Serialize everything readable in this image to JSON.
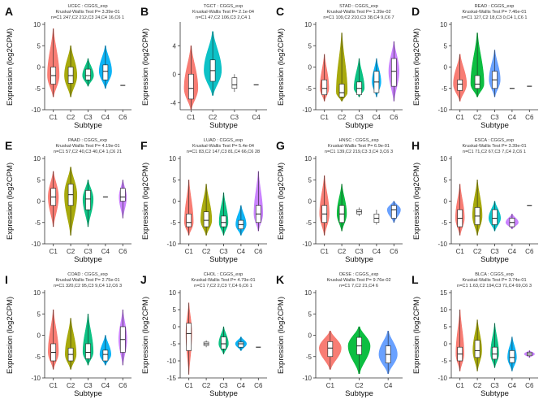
{
  "figure": {
    "ylabel": "Expression (log2CPM)",
    "xlabel": "Subtype"
  },
  "chart_data": [
    {
      "label": "A",
      "type": "violin",
      "title": "UCEC : CGGS_exp",
      "subtitle": "Kruskal-Wallis Test P= 3.39e-01",
      "counts": "n=C1 247,C2 212,C3 24,C4 16,C6 1",
      "ylim": [
        -10,
        10
      ],
      "yticks": [
        -10,
        -5,
        0,
        5,
        10
      ],
      "categories": [
        "C1",
        "C2",
        "C3",
        "C4",
        "C6"
      ],
      "colors": [
        "#F8766D",
        "#A3A500",
        "#00BF7D",
        "#00B0F6",
        "#C77CFF"
      ],
      "medians": [
        -2,
        -2,
        -2,
        -1,
        -4.3
      ],
      "q1": [
        -4,
        -3.8,
        -3,
        -3,
        -4.3
      ],
      "q3": [
        0,
        0,
        -0.5,
        0.5,
        -4.3
      ],
      "mins": [
        -7,
        -7,
        -4.5,
        -5,
        -4.3
      ],
      "maxs": [
        9,
        5,
        2,
        5,
        -4.3
      ],
      "widths": [
        0.8,
        0.85,
        0.75,
        0.85,
        0
      ]
    },
    {
      "label": "B",
      "type": "violin",
      "title": "TGCT : CGGS_exp",
      "subtitle": "Kruskal-Wallis Test P= 2.1e-04",
      "counts": "n=C1 47,C2 106,C3 2,C4 1",
      "ylim": [
        -5,
        7
      ],
      "yticks": [
        -4,
        0,
        4
      ],
      "categories": [
        "C1",
        "C2",
        "C3",
        "C4"
      ],
      "colors": [
        "#F8766D",
        "#00BFC4",
        "#7CAE00",
        "#C77CFF"
      ],
      "medians": [
        -2,
        0.5,
        -1.5,
        -1.5
      ],
      "q1": [
        -3.5,
        -1,
        -2,
        -1.5
      ],
      "q3": [
        0,
        2,
        -0.5,
        -1.5
      ],
      "mins": [
        -5,
        -3,
        -2.5,
        -1.5
      ],
      "maxs": [
        4,
        6,
        0,
        -1.5
      ],
      "widths": [
        0.75,
        0.95,
        0,
        0
      ]
    },
    {
      "label": "C",
      "type": "violin",
      "title": "STAD : CGGS_exp",
      "subtitle": "Kruskal-Wallis Test P= 1.39e-02",
      "counts": "n=C1 109,C2 210,C3 38,C4 9,C6 7",
      "ylim": [
        -10,
        10
      ],
      "yticks": [
        -10,
        -5,
        0,
        5,
        10
      ],
      "categories": [
        "C1",
        "C2",
        "C3",
        "C4",
        "C6"
      ],
      "colors": [
        "#F8766D",
        "#A3A500",
        "#00BF7D",
        "#00B0F6",
        "#C77CFF"
      ],
      "medians": [
        -5,
        -6,
        -5,
        -3.5,
        -1
      ],
      "q1": [
        -6.5,
        -7,
        -6.5,
        -6,
        -4.5
      ],
      "q3": [
        -3,
        -4,
        -3.5,
        -1,
        2
      ],
      "mins": [
        -8,
        -8,
        -7,
        -7,
        -8
      ],
      "maxs": [
        3,
        8,
        2,
        2,
        6
      ],
      "widths": [
        0.6,
        0.75,
        0.7,
        0.6,
        0.7
      ]
    },
    {
      "label": "D",
      "type": "violin",
      "title": "READ : CGGS_exp",
      "subtitle": "Kruskal-Wallis Test P= 7.46e-01",
      "counts": "n=C1 127,C2 18,C3 0,C4 1,C6 1",
      "ylim": [
        -10,
        10
      ],
      "yticks": [
        -10,
        -5,
        0,
        5,
        10
      ],
      "categories": [
        "C1",
        "C2",
        "C3",
        "C4",
        "C6"
      ],
      "colors": [
        "#F8766D",
        "#00BA38",
        "#619CFF",
        "#555555",
        "#555555"
      ],
      "medians": [
        -4,
        -4,
        -3,
        -5,
        -4.5
      ],
      "q1": [
        -5.5,
        -5,
        -5,
        -5,
        -4.5
      ],
      "q3": [
        -3,
        -2,
        -1,
        -5,
        -4.5
      ],
      "mins": [
        -8,
        -7,
        -7,
        -5,
        -4.5
      ],
      "maxs": [
        3,
        8,
        4,
        -5,
        -4.5
      ],
      "widths": [
        0.9,
        0.9,
        0.75,
        0,
        0
      ]
    },
    {
      "label": "E",
      "type": "violin",
      "title": "PAAD : CGGS_exp",
      "subtitle": "Kruskal-Wallis Test P= 4.19e-01",
      "counts": "n=C1 57,C2 40,C3 40,C4 1,C6 21",
      "ylim": [
        -10,
        10
      ],
      "yticks": [
        -10,
        -5,
        0,
        5,
        10
      ],
      "categories": [
        "C1",
        "C2",
        "C3",
        "C4",
        "C6"
      ],
      "colors": [
        "#F8766D",
        "#A3A500",
        "#00BF7D",
        "#555555",
        "#C77CFF"
      ],
      "medians": [
        1,
        1.5,
        0.5,
        1,
        1
      ],
      "q1": [
        -1,
        -1,
        -2,
        1,
        0
      ],
      "q3": [
        3,
        4,
        2.5,
        1,
        3
      ],
      "mins": [
        -6,
        -8,
        -6,
        1,
        -4
      ],
      "maxs": [
        7,
        8,
        5,
        1,
        5
      ],
      "widths": [
        0.7,
        0.85,
        0.7,
        0,
        0.5
      ]
    },
    {
      "label": "F",
      "type": "violin",
      "title": "LUAD : CGGS_exp",
      "subtitle": "Kruskal-Wallis Test P= 5.4e-04",
      "counts": "n=C1 83,C2 147,C3 81,C4 66,C6 28",
      "ylim": [
        -10,
        10
      ],
      "yticks": [
        -10,
        -5,
        0,
        5,
        10
      ],
      "categories": [
        "C1",
        "C2",
        "C3",
        "C4",
        "C6"
      ],
      "colors": [
        "#F8766D",
        "#A3A500",
        "#00BF7D",
        "#00B0F6",
        "#C77CFF"
      ],
      "medians": [
        -5,
        -4.5,
        -5,
        -5.5,
        -3
      ],
      "q1": [
        -6,
        -6,
        -6,
        -6.5,
        -5
      ],
      "q3": [
        -3,
        -2.5,
        -3.5,
        -4.5,
        -1
      ],
      "mins": [
        -8,
        -8,
        -8,
        -8,
        -7
      ],
      "maxs": [
        5,
        4,
        2,
        -1,
        7
      ],
      "widths": [
        0.6,
        0.75,
        0.6,
        0.7,
        0.6
      ]
    },
    {
      "label": "G",
      "type": "violin",
      "title": "HNSC : CGGS_exp",
      "subtitle": "Kruskal-Wallis Test P= 6.9e-01",
      "counts": "n=C1 139,C2 219,C3 3,C4 3,C6 3",
      "ylim": [
        -10,
        10
      ],
      "yticks": [
        -10,
        -5,
        0,
        5,
        10
      ],
      "categories": [
        "C1",
        "C2",
        "C3",
        "C4",
        "C6"
      ],
      "colors": [
        "#F8766D",
        "#00BA38",
        "#555555",
        "#555555",
        "#619CFF"
      ],
      "medians": [
        -3,
        -3,
        -2.5,
        -4,
        -2
      ],
      "q1": [
        -5,
        -5,
        -3,
        -5,
        -4
      ],
      "q3": [
        -1,
        -1,
        -2,
        -3,
        -1
      ],
      "mins": [
        -8,
        -7,
        -3.5,
        -5.5,
        -5
      ],
      "maxs": [
        6,
        4,
        -1.5,
        -2,
        0
      ],
      "widths": [
        0.65,
        0.65,
        0,
        0,
        0.9
      ]
    },
    {
      "label": "H",
      "type": "violin",
      "title": "ESCA : CGGS_exp",
      "subtitle": "Kruskal-Wallis Test P= 3.39e-01",
      "counts": "n=C1 71,C2 67,C3 7,C4 2,C6 1",
      "ylim": [
        -10,
        10
      ],
      "yticks": [
        -10,
        -5,
        0,
        5,
        10
      ],
      "categories": [
        "C1",
        "C2",
        "C3",
        "C4",
        "C6"
      ],
      "colors": [
        "#F8766D",
        "#A3A500",
        "#00BFC4",
        "#C77CFF",
        "#222222"
      ],
      "medians": [
        -4,
        -3.5,
        -4,
        -5,
        -1
      ],
      "q1": [
        -6,
        -5.5,
        -5.5,
        -6,
        -1
      ],
      "q3": [
        -2,
        -1.5,
        -2,
        -4,
        -1
      ],
      "mins": [
        -8,
        -8,
        -7,
        -6.5,
        -1
      ],
      "maxs": [
        4,
        5,
        0,
        -3,
        -1
      ],
      "widths": [
        0.6,
        0.65,
        0.8,
        0.85,
        0
      ]
    },
    {
      "label": "I",
      "type": "violin",
      "title": "COAD : CGGS_exp",
      "subtitle": "Kruskal-Wallis Test P= 2.75e-01",
      "counts": "n=C1 320,C2 95,C3 9,C4 12,C6 3",
      "ylim": [
        -10,
        10
      ],
      "yticks": [
        -10,
        -5,
        0,
        5,
        10
      ],
      "categories": [
        "C1",
        "C2",
        "C3",
        "C4",
        "C6"
      ],
      "colors": [
        "#F8766D",
        "#A3A500",
        "#00BF7D",
        "#00B0F6",
        "#C77CFF"
      ],
      "medians": [
        -4,
        -4.5,
        -4,
        -4.5,
        -1
      ],
      "q1": [
        -6,
        -6,
        -5.5,
        -6,
        -4
      ],
      "q3": [
        -2,
        -3,
        -2,
        -3.5,
        2
      ],
      "mins": [
        -8,
        -8,
        -7,
        -7,
        -7
      ],
      "maxs": [
        6,
        4,
        5,
        0,
        6
      ],
      "widths": [
        0.7,
        0.75,
        0.7,
        0.75,
        0.55
      ]
    },
    {
      "label": "J",
      "type": "violin",
      "title": "CHOL : CGGS_exp",
      "subtitle": "Kruskal-Wallis Test P= 4.79e-01",
      "counts": "n=C1 7,C2 2,C3 7,C4 6,C6 1",
      "ylim": [
        -15,
        10
      ],
      "yticks": [
        -15,
        -10,
        -5,
        0,
        5,
        10
      ],
      "categories": [
        "C1",
        "C2",
        "C3",
        "C4",
        "C6"
      ],
      "colors": [
        "#F8766D",
        "#A3A500",
        "#00BF7D",
        "#00B0F6",
        "#C77CFF"
      ],
      "medians": [
        -2,
        -5,
        -5,
        -5,
        -6
      ],
      "q1": [
        -7,
        -5.5,
        -6.5,
        -6,
        -6
      ],
      "q3": [
        1,
        -4.5,
        -3,
        -4.5,
        -6
      ],
      "mins": [
        -14,
        -6,
        -8,
        -7,
        -6
      ],
      "maxs": [
        7,
        -4,
        0,
        -3,
        -6
      ],
      "widths": [
        0.4,
        0,
        0.65,
        0.75,
        0
      ]
    },
    {
      "label": "K",
      "type": "violin",
      "title": "OESE : CGGS_exp",
      "subtitle": "Kruskal-Wallis Test P= 9.76e-02",
      "counts": "n=C1 7,C2 21,C4 6",
      "ylim": [
        -10,
        10
      ],
      "yticks": [
        -10,
        -5,
        0,
        5,
        10
      ],
      "categories": [
        "C1",
        "C2",
        "C4"
      ],
      "colors": [
        "#F8766D",
        "#00BA38",
        "#619CFF"
      ],
      "medians": [
        -3,
        -2.5,
        -4.5
      ],
      "q1": [
        -5,
        -4.5,
        -6.5
      ],
      "q3": [
        -1.5,
        -0.5,
        -2.5
      ],
      "mins": [
        -8,
        -9,
        -9
      ],
      "maxs": [
        1,
        2,
        1
      ],
      "widths": [
        0.9,
        0.9,
        0.75
      ]
    },
    {
      "label": "L",
      "type": "violin",
      "title": "BLCA : CGGS_exp",
      "subtitle": "Kruskal-Wallis Test P= 3.74e-01",
      "counts": "n=C1 1.63,C2 194,C3 71,C4 69,C6 3",
      "ylim": [
        -10,
        15
      ],
      "yticks": [
        -10,
        -5,
        0,
        5,
        10,
        15
      ],
      "categories": [
        "C1",
        "C2",
        "C3",
        "C4",
        "C6"
      ],
      "colors": [
        "#F8766D",
        "#A3A500",
        "#00BF7D",
        "#00B0F6",
        "#C77CFF"
      ],
      "medians": [
        -3,
        -2,
        -3,
        -4,
        -3
      ],
      "q1": [
        -5,
        -4,
        -4.5,
        -5.5,
        -3.5
      ],
      "q3": [
        -1,
        1,
        -1,
        -2,
        -2.5
      ],
      "mins": [
        -8,
        -8,
        -7,
        -8,
        -4
      ],
      "maxs": [
        10,
        7,
        6,
        2,
        -2
      ],
      "widths": [
        0.55,
        0.6,
        0.55,
        0.6,
        0.7
      ]
    }
  ]
}
